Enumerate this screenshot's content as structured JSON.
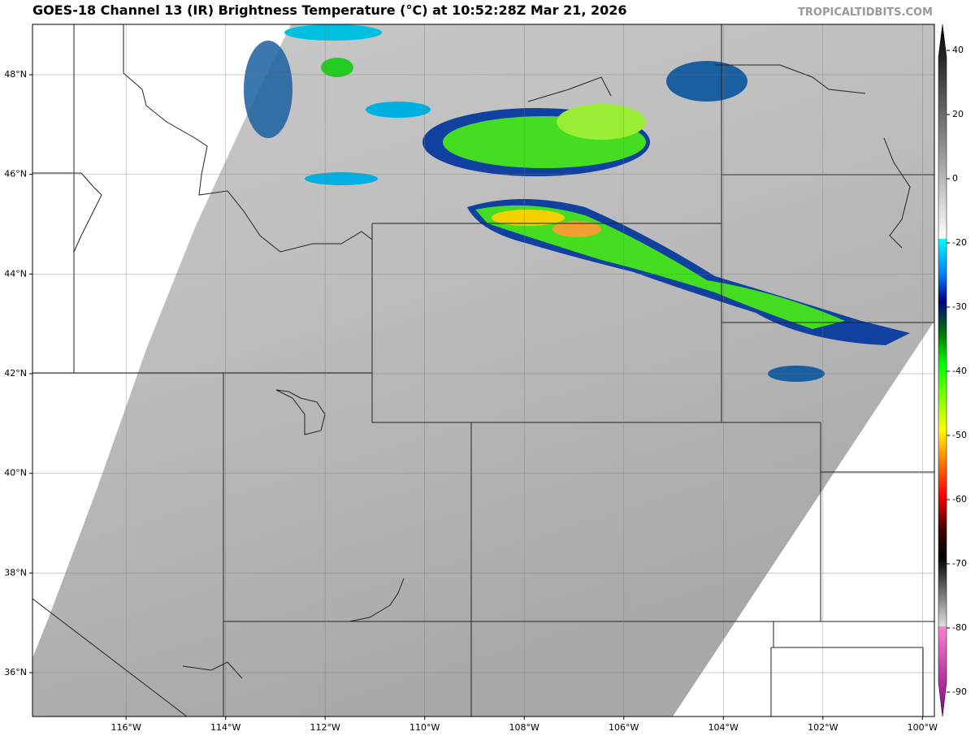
{
  "header": {
    "title": "GOES-18 Channel 13 (IR) Brightness Temperature (°C) at 10:52:28Z Mar 21, 2026",
    "watermark": "TROPICALTIDBITS.COM"
  },
  "map": {
    "xlim": [
      -117.88,
      -99.76
    ],
    "ylim": [
      35.12,
      49.01
    ],
    "xticks": [
      {
        "value": -116,
        "label": "116°W"
      },
      {
        "value": -114,
        "label": "114°W"
      },
      {
        "value": -112,
        "label": "112°W"
      },
      {
        "value": -110,
        "label": "110°W"
      },
      {
        "value": -108,
        "label": "108°W"
      },
      {
        "value": -106,
        "label": "106°W"
      },
      {
        "value": -104,
        "label": "104°W"
      },
      {
        "value": -102,
        "label": "102°W"
      },
      {
        "value": -100,
        "label": "100°W"
      }
    ],
    "yticks": [
      {
        "value": 36,
        "label": "36°N"
      },
      {
        "value": 38,
        "label": "38°N"
      },
      {
        "value": 40,
        "label": "40°N"
      },
      {
        "value": 42,
        "label": "42°N"
      },
      {
        "value": 44,
        "label": "44°N"
      },
      {
        "value": 46,
        "label": "46°N"
      },
      {
        "value": 48,
        "label": "48°N"
      }
    ]
  },
  "colorbar": {
    "yticks": [
      40,
      20,
      0,
      -20,
      -30,
      -40,
      -50,
      -60,
      -70,
      -80,
      -90
    ]
  }
}
